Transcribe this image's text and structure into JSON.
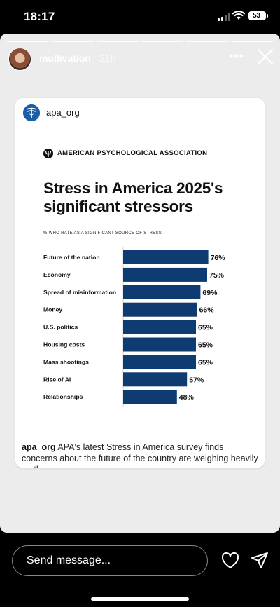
{
  "status_bar": {
    "time": "18:17",
    "battery": "53"
  },
  "story": {
    "segments": 6,
    "username": "mullivation",
    "time_ago": "21h",
    "more_icon": "more-horizontal-icon",
    "close_icon": "close-icon"
  },
  "post": {
    "username": "apa_org",
    "caption_user": "apa_org",
    "caption_text": " APA's latest Stress in America survey finds concerns about the future of the country are weighing heavily on the..."
  },
  "graphic": {
    "org_name": "AMERICAN PSYCHOLOGICAL ASSOCIATION",
    "bar_color": "#0f3b73"
  },
  "chart_data": {
    "type": "bar",
    "orientation": "horizontal",
    "title": "Stress in America 2025's significant stressors",
    "subtitle": "% WHO RATE AS A SIGNIFICANT SOURCE OF STRESS",
    "categories": [
      "Future of the nation",
      "Economy",
      "Spread of misinformation",
      "Money",
      "U.S. politics",
      "Housing costs",
      "Mass shootings",
      "Rise of AI",
      "Relationships"
    ],
    "values": [
      76,
      75,
      69,
      66,
      65,
      65,
      65,
      57,
      48
    ],
    "value_labels": [
      "76%",
      "75%",
      "69%",
      "66%",
      "65%",
      "65%",
      "65%",
      "57%",
      "48%"
    ],
    "xlim": [
      0,
      100
    ],
    "grid": false,
    "legend": "none"
  },
  "bottom_bar": {
    "placeholder": "Send message...",
    "heart_icon": "heart-icon",
    "share_icon": "send-icon"
  }
}
